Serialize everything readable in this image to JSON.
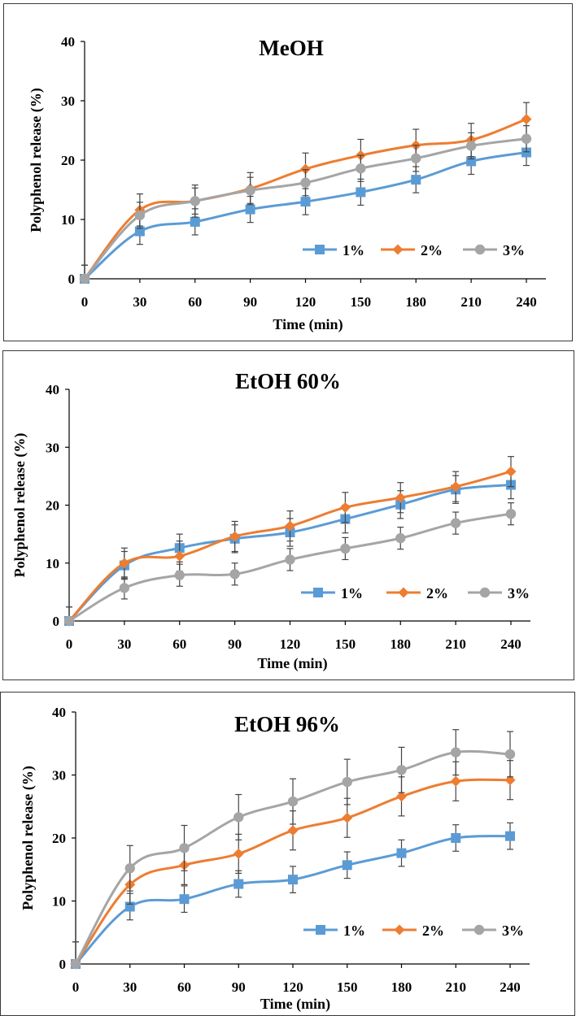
{
  "chart_data": [
    {
      "type": "line",
      "title": "MeOH",
      "xlabel": "Time (min)",
      "ylabel": "Polyphenol release (%)",
      "x": [
        0,
        30,
        60,
        90,
        120,
        150,
        180,
        210,
        240
      ],
      "ylim": [
        0,
        40
      ],
      "yticks": [
        0,
        10,
        20,
        30,
        40
      ],
      "legend_position": "bottom-right",
      "series": [
        {
          "name": "1%",
          "color": "#5b9bd5",
          "marker": "square",
          "values": [
            0,
            8.0,
            9.6,
            11.7,
            13.0,
            14.6,
            16.7,
            19.8,
            21.3
          ],
          "errors": [
            2.3,
            2.2,
            2.2,
            2.2,
            2.2,
            2.2,
            2.2,
            2.2,
            2.2
          ]
        },
        {
          "name": "2%",
          "color": "#ed7d31",
          "marker": "diamond",
          "values": [
            0,
            11.6,
            13.1,
            15.2,
            18.5,
            20.8,
            22.5,
            23.4,
            26.9
          ],
          "errors": [
            2.3,
            2.7,
            2.7,
            2.7,
            2.7,
            2.7,
            2.7,
            2.8,
            2.8
          ]
        },
        {
          "name": "3%",
          "color": "#a5a5a5",
          "marker": "circle",
          "values": [
            0,
            10.7,
            13.1,
            14.9,
            16.2,
            18.6,
            20.3,
            22.4,
            23.6
          ],
          "errors": [
            2.3,
            2.2,
            2.2,
            2.2,
            2.2,
            2.2,
            2.2,
            2.2,
            2.2
          ]
        }
      ]
    },
    {
      "type": "line",
      "title": "EtOH 60%",
      "xlabel": "Time (min)",
      "ylabel": "Polyphenol release (%)",
      "x": [
        0,
        30,
        60,
        90,
        120,
        150,
        180,
        210,
        240
      ],
      "ylim": [
        0,
        40
      ],
      "yticks": [
        0,
        10,
        20,
        30,
        40
      ],
      "legend_position": "bottom-right",
      "series": [
        {
          "name": "1%",
          "color": "#5b9bd5",
          "marker": "square",
          "values": [
            0,
            9.6,
            12.6,
            14.2,
            15.3,
            17.6,
            20.1,
            22.7,
            23.5
          ],
          "errors": [
            2.4,
            2.4,
            2.4,
            2.4,
            2.4,
            2.4,
            2.4,
            2.4,
            2.4
          ]
        },
        {
          "name": "2%",
          "color": "#ed7d31",
          "marker": "diamond",
          "values": [
            0,
            10.0,
            11.2,
            14.6,
            16.4,
            19.6,
            21.3,
            23.2,
            25.8
          ],
          "errors": [
            2.4,
            2.6,
            2.6,
            2.6,
            2.6,
            2.6,
            2.6,
            2.6,
            2.6
          ]
        },
        {
          "name": "3%",
          "color": "#a5a5a5",
          "marker": "circle",
          "values": [
            0,
            5.7,
            7.9,
            8.1,
            10.6,
            12.5,
            14.3,
            16.9,
            18.5
          ],
          "errors": [
            2.4,
            1.9,
            1.9,
            1.9,
            1.9,
            1.9,
            1.9,
            1.9,
            1.9
          ]
        }
      ]
    },
    {
      "type": "line",
      "title": "EtOH 96%",
      "xlabel": "Time (min)",
      "ylabel": "Polyphenol release (%)",
      "x": [
        0,
        30,
        60,
        90,
        120,
        150,
        180,
        210,
        240
      ],
      "ylim": [
        0,
        40
      ],
      "yticks": [
        0,
        10,
        20,
        30,
        40
      ],
      "legend_position": "bottom-right",
      "series": [
        {
          "name": "1%",
          "color": "#5b9bd5",
          "marker": "square",
          "values": [
            0,
            9.1,
            10.3,
            12.7,
            13.4,
            15.7,
            17.6,
            20.0,
            20.3
          ],
          "errors": [
            3.5,
            2.1,
            2.1,
            2.1,
            2.1,
            2.1,
            2.1,
            2.1,
            2.1
          ]
        },
        {
          "name": "2%",
          "color": "#ed7d31",
          "marker": "diamond",
          "values": [
            0,
            12.6,
            15.7,
            17.5,
            21.2,
            23.2,
            26.6,
            29.0,
            29.2
          ],
          "errors": [
            3.5,
            3.1,
            3.1,
            3.1,
            3.1,
            3.1,
            3.1,
            3.1,
            3.1
          ]
        },
        {
          "name": "3%",
          "color": "#a5a5a5",
          "marker": "circle",
          "values": [
            0,
            15.2,
            18.4,
            23.3,
            25.8,
            28.9,
            30.8,
            33.6,
            33.3
          ],
          "errors": [
            3.5,
            3.6,
            3.6,
            3.6,
            3.6,
            3.6,
            3.6,
            3.6,
            3.6
          ]
        }
      ]
    }
  ]
}
